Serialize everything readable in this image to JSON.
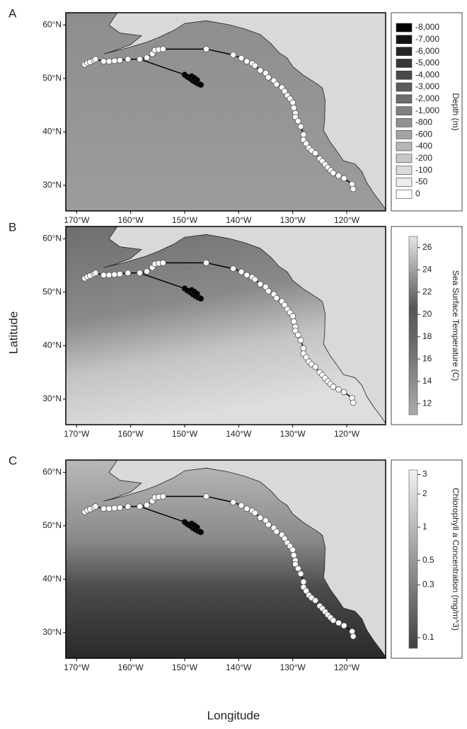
{
  "y_label": "Latitude",
  "x_label": "Longitude",
  "map": {
    "lon_range": [
      -172,
      -112.8
    ],
    "lat_range": [
      25.2,
      62.3
    ],
    "lat_ticks": [
      {
        "value": 60,
        "label": "60°N"
      },
      {
        "value": 50,
        "label": "50°N"
      },
      {
        "value": 40,
        "label": "40°N"
      },
      {
        "value": 30,
        "label": "30°N"
      }
    ],
    "lon_ticks": [
      {
        "value": -170,
        "label": "170°W"
      },
      {
        "value": -160,
        "label": "160°W"
      },
      {
        "value": -150,
        "label": "150°W"
      },
      {
        "value": -140,
        "label": "140°W"
      },
      {
        "value": -130,
        "label": "130°W"
      },
      {
        "value": -120,
        "label": "120°W"
      }
    ]
  },
  "stations": {
    "lon": [
      -168.5,
      -168,
      -167.5,
      -166.8,
      -166.5,
      -165,
      -164,
      -163,
      -162,
      -160.5,
      -158.3,
      -157,
      -156,
      -155.5,
      -154.8,
      -154,
      -146,
      -141,
      -139.5,
      -138.5,
      -137.5,
      -137,
      -136,
      -135,
      -134.5,
      -133.5,
      -133,
      -132,
      -131.5,
      -131,
      -130.5,
      -130,
      -129.8,
      -129.5,
      -129.5,
      -129,
      -128.5,
      -128,
      -128,
      -127.5,
      -127,
      -126.5,
      -125.8,
      -125,
      -124.5,
      -124,
      -123.5,
      -123,
      -122.5,
      -121.5,
      -120.5,
      -119,
      -118.8
    ],
    "lat": [
      52.6,
      52.9,
      53.1,
      53.4,
      53.6,
      53.2,
      53.2,
      53.3,
      53.4,
      53.6,
      53.6,
      53.9,
      54.6,
      55.3,
      55.4,
      55.5,
      55.5,
      54.4,
      53.8,
      53.2,
      52.8,
      52.4,
      51.5,
      51,
      50.2,
      49.6,
      48.9,
      48.3,
      47.6,
      46.8,
      46.2,
      45.5,
      44.5,
      43.5,
      42.8,
      42,
      41,
      39.5,
      38.5,
      37.8,
      37,
      36.5,
      36,
      35,
      34.5,
      33.9,
      33.3,
      32.8,
      32.3,
      31.8,
      31.3,
      30.2,
      29.3
    ]
  },
  "drifter": {
    "lon": [
      -158.3,
      -150,
      -149.5,
      -149,
      -148.7,
      -148.5,
      -148.2,
      -148,
      -147.7,
      -147.5,
      -147.2,
      -147
    ],
    "lat": [
      53.6,
      50.7,
      50.3,
      50,
      50.4,
      49.6,
      50.1,
      49.3,
      49.7,
      49,
      48.9,
      48.8
    ]
  },
  "panels": [
    {
      "letter": "A",
      "legend": {
        "title": "Depth (m)",
        "labels": [
          "-8,000",
          "-7,000",
          "-6,000",
          "-5,000",
          "-4,000",
          "-3,000",
          "-2,000",
          "-1,000",
          "-800",
          "-600",
          "-400",
          "-200",
          "-100",
          "-50",
          "0"
        ]
      }
    },
    {
      "letter": "B",
      "legend": {
        "title": "Sea Surface Temperature (C)",
        "range": [
          11,
          27
        ],
        "ticks": [
          26,
          24,
          22,
          20,
          18,
          16,
          14,
          12
        ]
      }
    },
    {
      "letter": "C",
      "legend": {
        "title": "Chlorophyll a Concentration (mg/m^3)",
        "range": [
          0.08,
          3.3
        ],
        "log": true,
        "ticks": [
          3,
          2,
          1,
          0.5,
          0.3,
          0.1
        ]
      }
    }
  ]
}
